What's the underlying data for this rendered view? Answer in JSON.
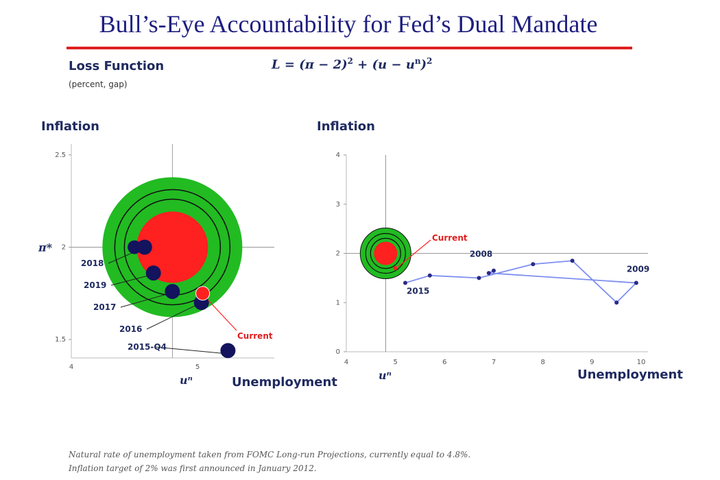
{
  "title": "Bull’s-Eye Accountability for Fed’s Dual Mandate",
  "loss": {
    "label": "Loss Function",
    "note": "(percent, gap)",
    "formula_main": "L = (π − 2)",
    "formula_mid": " + (u − u",
    "formula_end": ")",
    "exp_2": "2",
    "exp_n": "n"
  },
  "footnotes": [
    "Natural rate of unemployment taken from FOMC Long-run Projections, currently equal to 4.8%.",
    "Inflation target of 2% was first announced in January 2012."
  ],
  "colors": {
    "green": "#22bb22",
    "red": "#ff2020",
    "navy": "#13135e",
    "blue_line": "#7e8ff0",
    "title": "#1f1f80"
  },
  "chart_data": [
    {
      "type": "scatter",
      "ylabel": "Inflation",
      "xlabel": "Unemployment",
      "ylim": [
        1.4,
        2.7
      ],
      "xlim": [
        4,
        5.14
      ],
      "yticks": [
        {
          "v": 2.5,
          "label": "2.5"
        },
        {
          "v": 2,
          "label": "2"
        },
        {
          "v": 1.5,
          "label": "1.5"
        }
      ],
      "xticks": [
        {
          "v": 4,
          "label": "4"
        },
        {
          "v": 5,
          "label": "5"
        }
      ],
      "target_label": "π*",
      "natural_rate_label": "uⁿ",
      "target": {
        "u": 4.8,
        "pi": 2.0
      },
      "points": [
        {
          "label": "2018",
          "u": 4.58,
          "pi": 2.0
        },
        {
          "label": "2019",
          "u": 4.65,
          "pi": 1.86
        },
        {
          "label": "2017",
          "u": 4.8,
          "pi": 1.76
        },
        {
          "label": "2016",
          "u": 5.03,
          "pi": 1.7
        },
        {
          "label": "2015-Q4",
          "u": 5.24,
          "pi": 1.44
        }
      ],
      "current": {
        "label": "Current",
        "u": 5.04,
        "pi": 1.75
      }
    },
    {
      "type": "line",
      "ylabel": "Inflation",
      "xlabel": "Unemployment",
      "xlim": [
        4,
        10
      ],
      "ylim": [
        0,
        4
      ],
      "xticks": [
        4,
        5,
        6,
        7,
        8,
        9,
        10
      ],
      "yticks": [
        0,
        1,
        2,
        3,
        4
      ],
      "natural_rate_label": "uⁿ",
      "target": {
        "u": 4.8,
        "pi": 2.0
      },
      "series": [
        {
          "x": [
            5.2,
            5.7,
            6.7,
            7.8,
            8.6,
            9.5,
            9.9,
            6.9,
            7.0
          ],
          "y": [
            1.4,
            1.55,
            1.5,
            1.78,
            1.85,
            1.0,
            1.4,
            1.6,
            1.65
          ]
        }
      ],
      "labels": [
        {
          "label": "2015",
          "u": 5.2,
          "pi": 1.4
        },
        {
          "label": "2008",
          "u": 6.9,
          "pi": 1.65
        },
        {
          "label": "2009",
          "u": 9.9,
          "pi": 1.4
        },
        {
          "label": "Current",
          "u": 5.0,
          "pi": 1.7
        }
      ]
    }
  ]
}
